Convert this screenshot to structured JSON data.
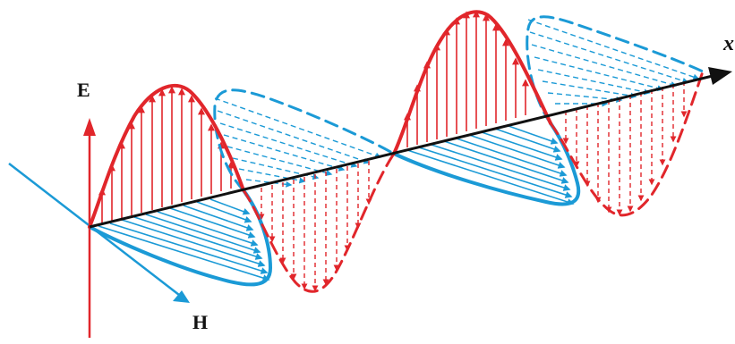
{
  "diagram": {
    "labels": {
      "electric_field": "E",
      "magnetic_field": "H",
      "propagation_axis": "x"
    },
    "colors": {
      "electric": "#e1262b",
      "magnetic": "#1b9ad6",
      "axis": "#111111",
      "background": "#ffffff"
    }
  }
}
